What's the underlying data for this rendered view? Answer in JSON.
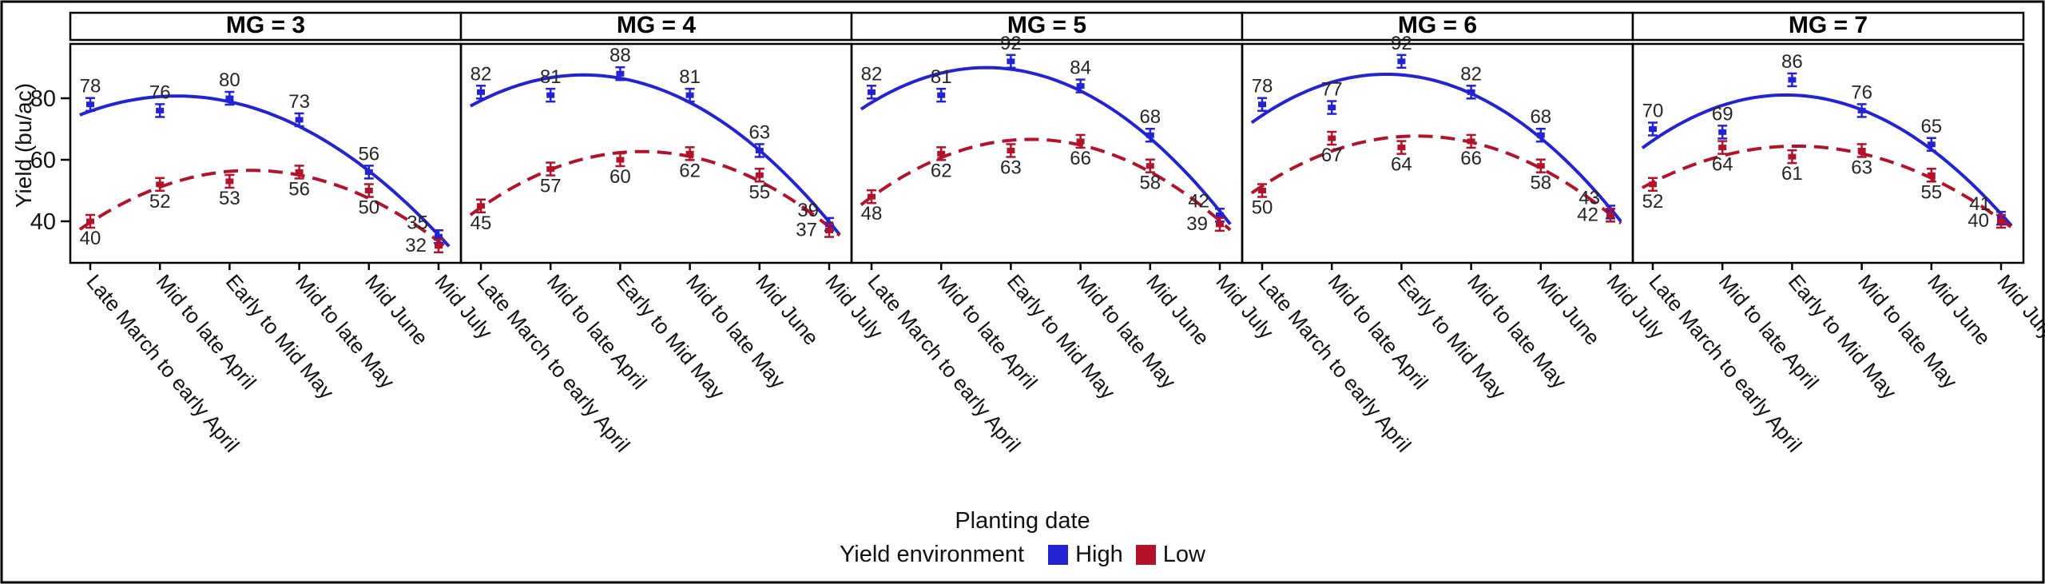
{
  "chart_data": {
    "type": "line",
    "title": "",
    "xlabel": "Planting date",
    "ylabel": "Yield (bu/ac)",
    "legend_title": "Yield environment",
    "legend_position": "bottom",
    "grid": false,
    "yticks": [
      40,
      60,
      80
    ],
    "ylim": [
      27,
      98
    ],
    "categories": [
      "Late March to early April",
      "Mid to late April",
      "Early to Mid May",
      "Mid to late May",
      "Mid June",
      "Mid July"
    ],
    "series_styles": [
      {
        "name": "High",
        "color": "#2323d3",
        "line": "solid"
      },
      {
        "name": "Low",
        "color": "#b2122a",
        "line": "dashed"
      }
    ],
    "facets": [
      {
        "title": "MG = 3",
        "series": [
          {
            "name": "High",
            "values": [
              78,
              76,
              80,
              73,
              56,
              35
            ]
          },
          {
            "name": "Low",
            "values": [
              40,
              52,
              53,
              56,
              50,
              32
            ]
          }
        ]
      },
      {
        "title": "MG = 4",
        "series": [
          {
            "name": "High",
            "values": [
              82,
              81,
              88,
              81,
              63,
              39
            ]
          },
          {
            "name": "Low",
            "values": [
              45,
              57,
              60,
              62,
              55,
              37
            ]
          }
        ]
      },
      {
        "title": "MG = 5",
        "series": [
          {
            "name": "High",
            "values": [
              82,
              81,
              92,
              84,
              68,
              42
            ]
          },
          {
            "name": "Low",
            "values": [
              48,
              62,
              63,
              66,
              58,
              39
            ]
          }
        ]
      },
      {
        "title": "MG = 6",
        "series": [
          {
            "name": "High",
            "values": [
              78,
              77,
              92,
              82,
              68,
              43
            ]
          },
          {
            "name": "Low",
            "values": [
              50,
              67,
              64,
              66,
              58,
              42
            ]
          }
        ]
      },
      {
        "title": "MG = 7",
        "series": [
          {
            "name": "High",
            "values": [
              70,
              69,
              86,
              76,
              65,
              41
            ]
          },
          {
            "name": "Low",
            "values": [
              52,
              64,
              61,
              63,
              55,
              40
            ]
          }
        ]
      }
    ]
  }
}
